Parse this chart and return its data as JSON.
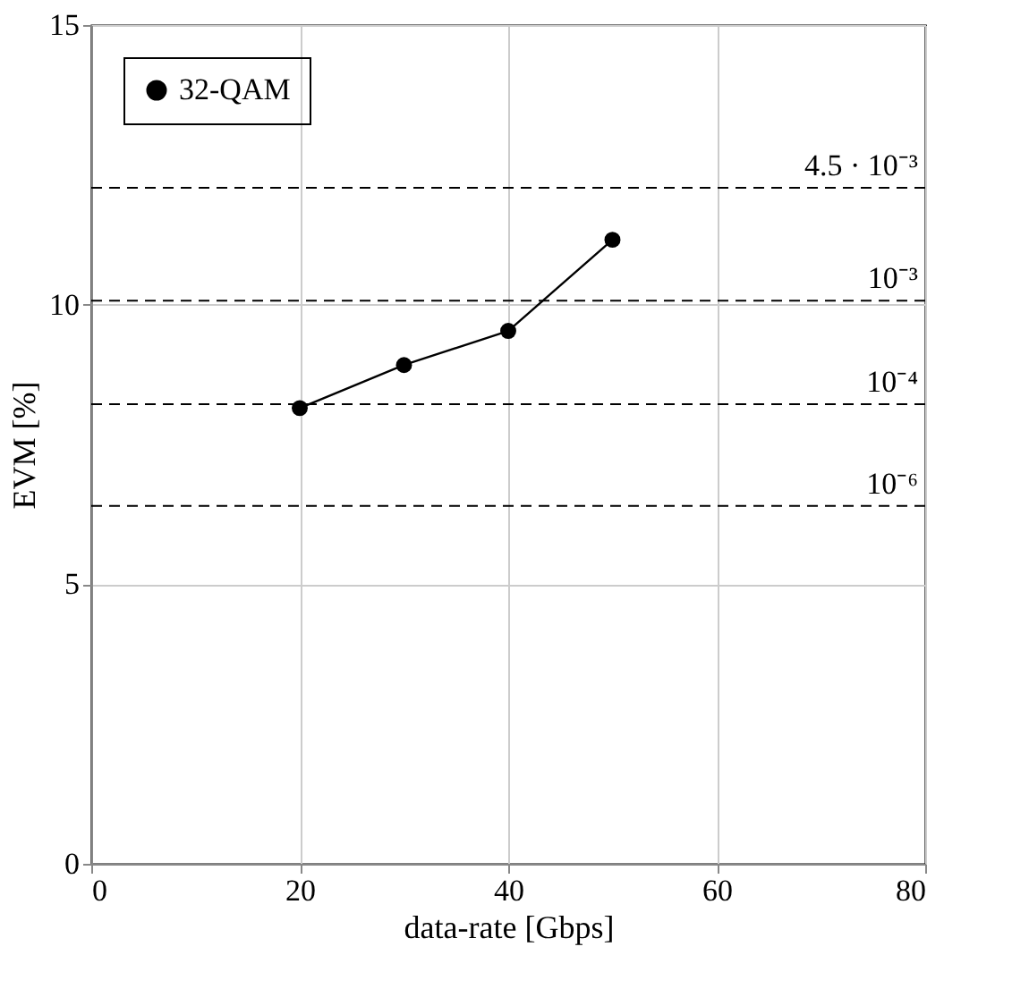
{
  "chart_data": {
    "type": "line",
    "xlabel": "data-rate [Gbps]",
    "ylabel": "EVM [%]",
    "x": [
      20,
      30,
      40,
      50
    ],
    "series": [
      {
        "name": "32-QAM",
        "color": "#000000",
        "values": [
          8.15,
          8.92,
          9.53,
          11.16
        ]
      }
    ],
    "xlim": [
      0,
      80
    ],
    "xticks": [
      0,
      20,
      40,
      60,
      80
    ],
    "ylim": [
      0,
      15
    ],
    "yticks": [
      0,
      5,
      10,
      15
    ],
    "ref_lines": [
      {
        "axis": "y",
        "value": 12.09,
        "label": "4.5 · 10⁻³",
        "line_style": "dashed"
      },
      {
        "axis": "y",
        "value": 10.07,
        "label": "10⁻³",
        "line_style": "dashed"
      },
      {
        "axis": "y",
        "value": 8.22,
        "label": "10⁻⁴",
        "line_style": "dashed"
      },
      {
        "axis": "y",
        "value": 6.4,
        "label": "10⁻⁶",
        "line_style": "dashed"
      }
    ],
    "grid": true,
    "legend": "top left",
    "marker": "circle",
    "line_style": "solid"
  }
}
